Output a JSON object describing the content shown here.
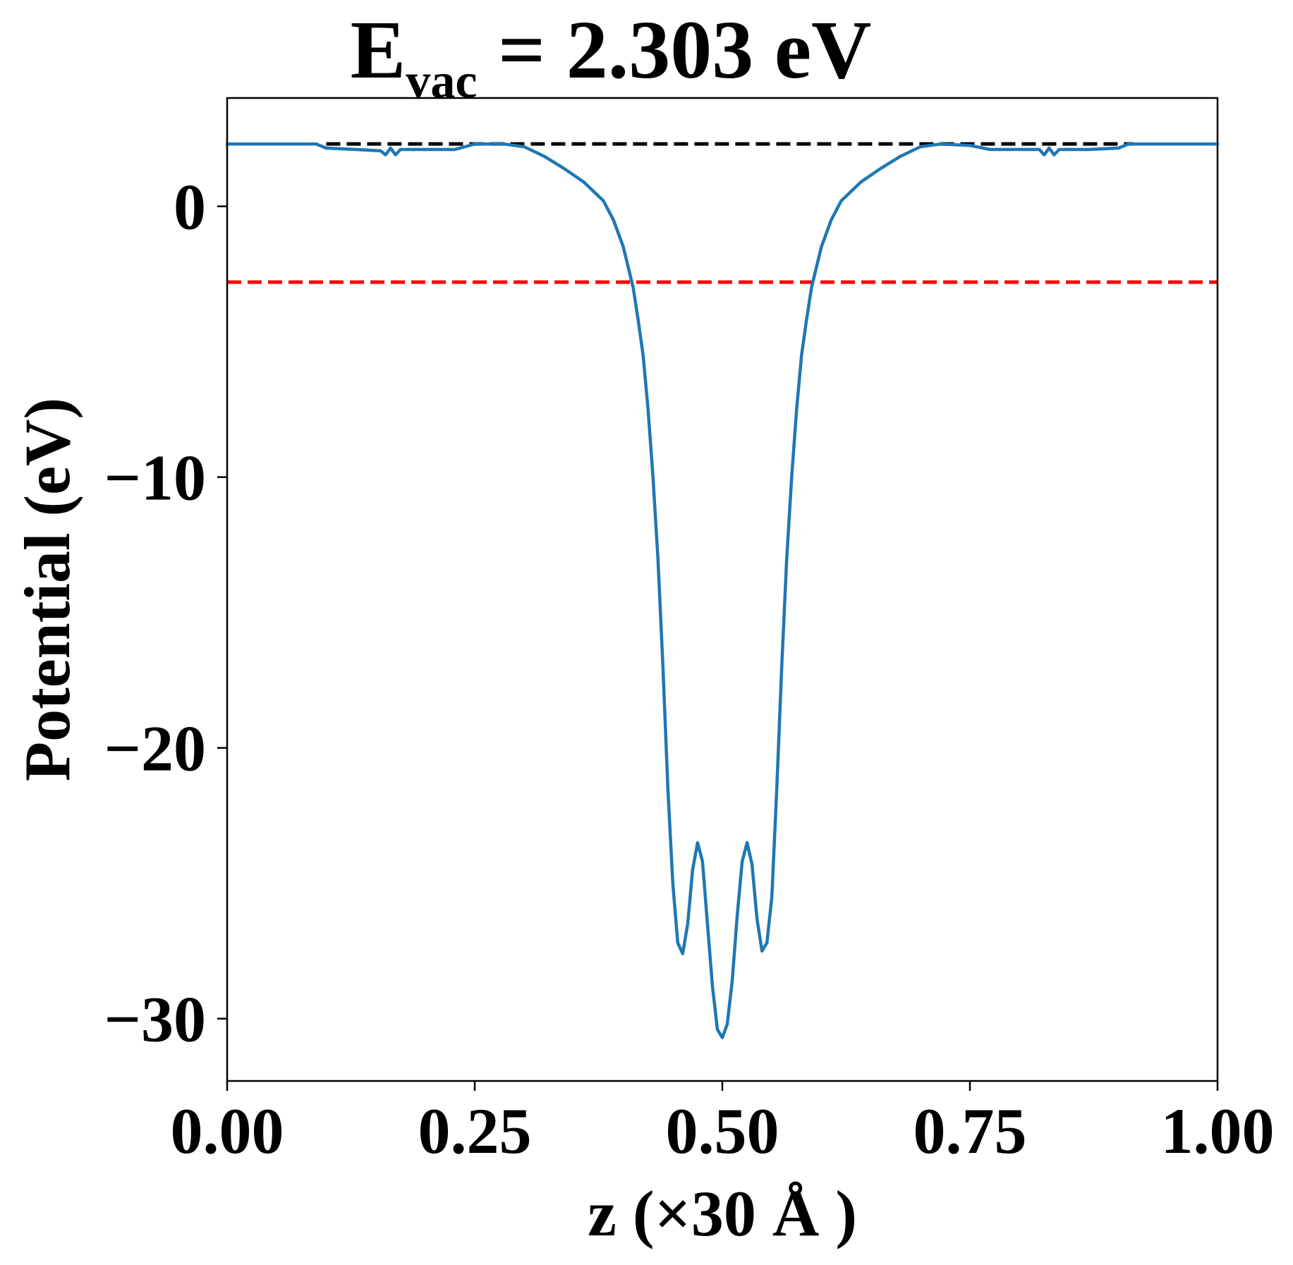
{
  "chart_data": {
    "type": "line",
    "title": {
      "main": "E",
      "subscript": "vac",
      "rest": " = 2.303 eV"
    },
    "xlabel": "z (×30 Å )",
    "ylabel": "Potential (eV)",
    "xlim": [
      0.0,
      1.0
    ],
    "ylim": [
      -32.3,
      4.0
    ],
    "xticks": [
      {
        "value": 0.0,
        "label": "0.00"
      },
      {
        "value": 0.25,
        "label": "0.25"
      },
      {
        "value": 0.5,
        "label": "0.50"
      },
      {
        "value": 0.75,
        "label": "0.75"
      },
      {
        "value": 1.0,
        "label": "1.00"
      }
    ],
    "yticks": [
      {
        "value": 0,
        "label": "0"
      },
      {
        "value": -10,
        "label": "−10"
      },
      {
        "value": -20,
        "label": "−20"
      },
      {
        "value": -30,
        "label": "−30"
      }
    ],
    "grid": false,
    "legend": "none",
    "series": [
      {
        "color": "#1f77b4",
        "style": "solid",
        "x": [
          0.0,
          0.05,
          0.09,
          0.1,
          0.13,
          0.155,
          0.16,
          0.165,
          0.17,
          0.175,
          0.18,
          0.2,
          0.23,
          0.25,
          0.28,
          0.3,
          0.32,
          0.34,
          0.36,
          0.38,
          0.39,
          0.4,
          0.41,
          0.415,
          0.42,
          0.425,
          0.43,
          0.435,
          0.44,
          0.445,
          0.45,
          0.455,
          0.46,
          0.465,
          0.47,
          0.475,
          0.48,
          0.485,
          0.49,
          0.495,
          0.5,
          0.505,
          0.51,
          0.515,
          0.52,
          0.525,
          0.53,
          0.535,
          0.54,
          0.545,
          0.55,
          0.555,
          0.56,
          0.565,
          0.57,
          0.575,
          0.58,
          0.585,
          0.59,
          0.6,
          0.61,
          0.62,
          0.64,
          0.66,
          0.68,
          0.7,
          0.72,
          0.75,
          0.77,
          0.8,
          0.82,
          0.825,
          0.83,
          0.835,
          0.84,
          0.845,
          0.87,
          0.9,
          0.91,
          0.95,
          1.0
        ],
        "y": [
          2.303,
          2.303,
          2.3,
          2.15,
          2.1,
          2.05,
          1.9,
          2.15,
          1.9,
          2.1,
          2.1,
          2.1,
          2.1,
          2.3,
          2.3,
          2.2,
          1.85,
          1.4,
          0.9,
          0.2,
          -0.5,
          -1.5,
          -3.0,
          -4.2,
          -5.5,
          -7.5,
          -10.0,
          -13.0,
          -17.0,
          -21.5,
          -25.0,
          -27.2,
          -27.6,
          -26.5,
          -24.5,
          -23.5,
          -24.2,
          -26.5,
          -28.8,
          -30.4,
          -30.7,
          -30.2,
          -28.6,
          -26.2,
          -24.2,
          -23.5,
          -24.3,
          -26.3,
          -27.5,
          -27.2,
          -25.5,
          -21.5,
          -17.0,
          -13.0,
          -10.0,
          -7.5,
          -5.5,
          -4.2,
          -3.0,
          -1.5,
          -0.5,
          0.2,
          0.9,
          1.4,
          1.85,
          2.2,
          2.3,
          2.25,
          2.1,
          2.1,
          2.1,
          1.9,
          2.15,
          1.9,
          2.1,
          2.1,
          2.1,
          2.15,
          2.3,
          2.303,
          2.303
        ]
      }
    ],
    "reference_lines": [
      {
        "y": 2.303,
        "color": "#000000",
        "style": "dashed",
        "x_from": 0.1,
        "x_to": 0.915
      },
      {
        "y": -2.8,
        "color": "#ff0000",
        "style": "dashed",
        "x_from": 0.0,
        "x_to": 1.0
      }
    ]
  }
}
